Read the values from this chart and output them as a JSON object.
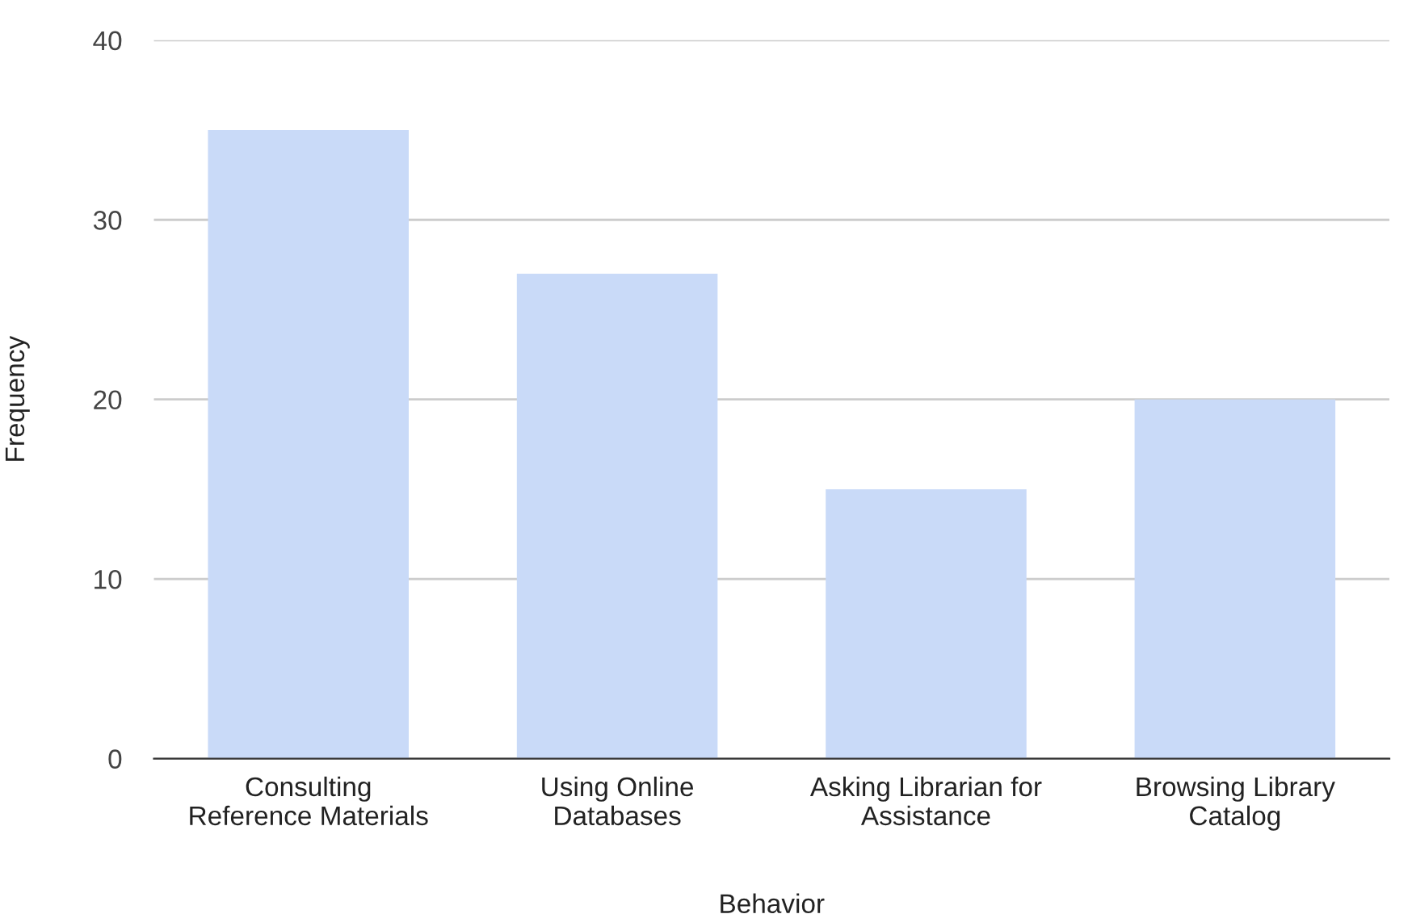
{
  "chart_data": {
    "type": "bar",
    "categories": [
      "Consulting\nReference Materials",
      "Using Online\nDatabases",
      "Asking Librarian for\nAssistance",
      "Browsing Library\nCatalog"
    ],
    "values": [
      35,
      27,
      15,
      20
    ],
    "color": "#c9daf8",
    "xlabel": "Behavior",
    "ylabel": "Frequency",
    "ylim": [
      0,
      40
    ],
    "yticks": [
      0,
      10,
      20,
      30,
      40
    ],
    "grid": "y",
    "legend": false
  }
}
